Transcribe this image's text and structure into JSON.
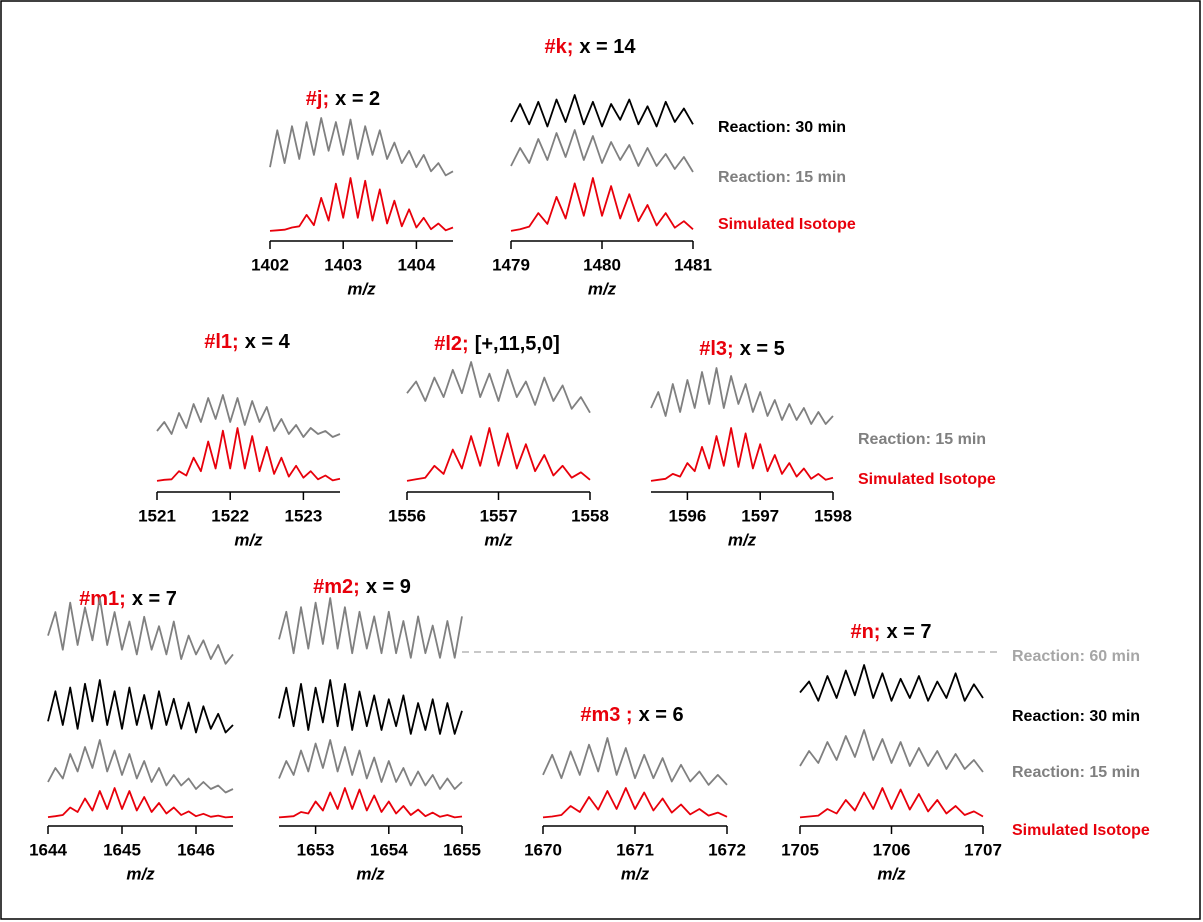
{
  "chart_data": [
    {
      "type": "line",
      "id": "#j;",
      "title": "x = 2",
      "xlabel": "m/z",
      "xlim": [
        1402,
        1404.5
      ],
      "xticks": [
        1402,
        1403,
        1404
      ],
      "x": [
        1402,
        1402.1,
        1402.2,
        1402.3,
        1402.4,
        1402.5,
        1402.6,
        1402.7,
        1402.8,
        1402.9,
        1403,
        1403.1,
        1403.2,
        1403.3,
        1403.4,
        1403.5,
        1403.6,
        1403.7,
        1403.8,
        1403.9,
        1404,
        1404.1,
        1404.2,
        1404.3,
        1404.4,
        1404.5
      ],
      "series": [
        {
          "color": "#808080",
          "values": [
            40,
            85,
            45,
            90,
            50,
            95,
            55,
            100,
            60,
            95,
            55,
            98,
            50,
            90,
            55,
            85,
            50,
            70,
            45,
            60,
            40,
            55,
            35,
            45,
            30,
            35
          ]
        },
        {
          "color": "#e8000b",
          "values": [
            2,
            3,
            4,
            8,
            10,
            30,
            12,
            60,
            20,
            85,
            25,
            95,
            25,
            90,
            20,
            75,
            15,
            55,
            10,
            40,
            8,
            25,
            5,
            15,
            3,
            8
          ]
        }
      ]
    },
    {
      "type": "line",
      "id": "#k;",
      "title": "x = 14",
      "xlabel": "m/z",
      "xlim": [
        1479,
        1481
      ],
      "xticks": [
        1479,
        1480,
        1481
      ],
      "x": [
        1479,
        1479.1,
        1479.2,
        1479.3,
        1479.4,
        1479.5,
        1479.6,
        1479.7,
        1479.8,
        1479.9,
        1480,
        1480.1,
        1480.2,
        1480.3,
        1480.4,
        1480.5,
        1480.6,
        1480.7,
        1480.8,
        1480.9,
        1481
      ],
      "series": [
        {
          "name": "Reaction: 30 min",
          "color": "#000000",
          "values": [
            40,
            80,
            35,
            85,
            30,
            90,
            40,
            100,
            35,
            85,
            30,
            80,
            45,
            90,
            35,
            75,
            30,
            85,
            40,
            70,
            35
          ]
        },
        {
          "name": "Reaction: 15 min",
          "color": "#808080",
          "values": [
            40,
            70,
            45,
            85,
            50,
            95,
            55,
            100,
            50,
            90,
            45,
            80,
            50,
            75,
            40,
            70,
            40,
            60,
            35,
            55,
            30
          ]
        },
        {
          "name": "Simulated Isotope",
          "color": "#e8000b",
          "values": [
            2,
            5,
            10,
            35,
            15,
            65,
            25,
            90,
            30,
            100,
            30,
            85,
            25,
            70,
            20,
            50,
            12,
            35,
            8,
            20,
            5
          ]
        }
      ]
    },
    {
      "type": "line",
      "id": "#l1;",
      "title": "x = 4",
      "xlabel": "m/z",
      "xlim": [
        1521,
        1523.5
      ],
      "xticks": [
        1521,
        1522,
        1523
      ],
      "x": [
        1521,
        1521.1,
        1521.2,
        1521.3,
        1521.4,
        1521.5,
        1521.6,
        1521.7,
        1521.8,
        1521.9,
        1522,
        1522.1,
        1522.2,
        1522.3,
        1522.4,
        1522.5,
        1522.6,
        1522.7,
        1522.8,
        1522.9,
        1523,
        1523.1,
        1523.2,
        1523.3,
        1523.4,
        1523.5
      ],
      "series": [
        {
          "color": "#808080",
          "values": [
            40,
            55,
            35,
            70,
            45,
            85,
            55,
            95,
            60,
            100,
            55,
            95,
            50,
            90,
            55,
            80,
            40,
            60,
            35,
            50,
            30,
            45,
            35,
            40,
            30,
            35
          ]
        },
        {
          "color": "#e8000b",
          "values": [
            2,
            4,
            5,
            20,
            12,
            45,
            20,
            75,
            25,
            95,
            25,
            100,
            25,
            85,
            20,
            65,
            15,
            45,
            10,
            30,
            8,
            20,
            5,
            12,
            3,
            6
          ]
        }
      ]
    },
    {
      "type": "line",
      "id": "#l2;",
      "title": "[+,11,5,0]",
      "xlabel": "m/z",
      "xlim": [
        1556,
        1558
      ],
      "xticks": [
        1556,
        1557,
        1558
      ],
      "x": [
        1556,
        1556.1,
        1556.2,
        1556.3,
        1556.4,
        1556.5,
        1556.6,
        1556.7,
        1556.8,
        1556.9,
        1557,
        1557.1,
        1557.2,
        1557.3,
        1557.4,
        1557.5,
        1557.6,
        1557.7,
        1557.8,
        1557.9,
        1558
      ],
      "series": [
        {
          "color": "#808080",
          "values": [
            60,
            75,
            50,
            80,
            55,
            90,
            60,
            100,
            55,
            85,
            50,
            90,
            55,
            75,
            45,
            80,
            50,
            70,
            40,
            55,
            35
          ]
        },
        {
          "color": "#e8000b",
          "values": [
            2,
            5,
            8,
            30,
            15,
            60,
            25,
            85,
            30,
            100,
            30,
            90,
            25,
            70,
            20,
            50,
            12,
            30,
            8,
            18,
            4
          ]
        }
      ]
    },
    {
      "type": "line",
      "id": "#l3;",
      "title": "x = 5",
      "xlabel": "m/z",
      "xlim": [
        1595.5,
        1598
      ],
      "xticks": [
        1596,
        1597,
        1598
      ],
      "x": [
        1595.5,
        1595.6,
        1595.7,
        1595.8,
        1595.9,
        1596,
        1596.1,
        1596.2,
        1596.3,
        1596.4,
        1596.5,
        1596.6,
        1596.7,
        1596.8,
        1596.9,
        1597,
        1597.1,
        1597.2,
        1597.3,
        1597.4,
        1597.5,
        1597.6,
        1597.7,
        1597.8,
        1597.9,
        1598
      ],
      "series": [
        {
          "name": "Reaction: 15 min",
          "color": "#808080",
          "values": [
            50,
            70,
            40,
            80,
            45,
            85,
            50,
            95,
            55,
            100,
            50,
            90,
            55,
            80,
            45,
            70,
            40,
            60,
            35,
            55,
            35,
            50,
            30,
            45,
            30,
            40
          ]
        },
        {
          "name": "Simulated Isotope",
          "color": "#e8000b",
          "values": [
            2,
            4,
            6,
            15,
            10,
            35,
            20,
            65,
            25,
            85,
            30,
            100,
            28,
            90,
            25,
            70,
            20,
            50,
            15,
            35,
            10,
            25,
            6,
            15,
            4,
            8
          ]
        }
      ]
    },
    {
      "type": "line",
      "id": "#m1;",
      "title": "x = 7",
      "xlabel": "m/z",
      "xlim": [
        1644,
        1646.5
      ],
      "xticks": [
        1644,
        1645,
        1646
      ],
      "x": [
        1644,
        1644.1,
        1644.2,
        1644.3,
        1644.4,
        1644.5,
        1644.6,
        1644.7,
        1644.8,
        1644.9,
        1645,
        1645.1,
        1645.2,
        1645.3,
        1645.4,
        1645.5,
        1645.6,
        1645.7,
        1645.8,
        1645.9,
        1646,
        1646.1,
        1646.2,
        1646.3,
        1646.4,
        1646.5
      ],
      "series": [
        {
          "color": "#808080",
          "values": [
            60,
            85,
            45,
            95,
            50,
            90,
            55,
            100,
            50,
            85,
            45,
            75,
            40,
            80,
            45,
            70,
            40,
            75,
            35,
            60,
            40,
            55,
            35,
            50,
            30,
            40
          ]
        },
        {
          "color": "#000000",
          "values": [
            45,
            85,
            40,
            90,
            35,
            95,
            45,
            100,
            40,
            85,
            35,
            90,
            40,
            80,
            35,
            85,
            40,
            75,
            35,
            70,
            30,
            65,
            35,
            55,
            30,
            40
          ]
        },
        {
          "color": "#808080",
          "values": [
            40,
            60,
            45,
            80,
            55,
            90,
            60,
            100,
            55,
            85,
            50,
            80,
            45,
            70,
            40,
            60,
            35,
            50,
            35,
            45,
            30,
            40,
            30,
            35,
            25,
            30
          ]
        },
        {
          "color": "#e8000b",
          "values": [
            3,
            6,
            10,
            35,
            20,
            65,
            25,
            90,
            30,
            100,
            30,
            90,
            25,
            70,
            20,
            50,
            15,
            35,
            10,
            22,
            6,
            14,
            4,
            8,
            2,
            4
          ]
        }
      ]
    },
    {
      "type": "line",
      "id": "#m2;",
      "title": "x = 9",
      "xlabel": "m/z",
      "xlim": [
        1652.5,
        1655
      ],
      "xticks": [
        1653,
        1654,
        1655
      ],
      "x": [
        1652.5,
        1652.6,
        1652.7,
        1652.8,
        1652.9,
        1653,
        1653.1,
        1653.2,
        1653.3,
        1653.4,
        1653.5,
        1653.6,
        1653.7,
        1653.8,
        1653.9,
        1654,
        1654.1,
        1654.2,
        1654.3,
        1654.4,
        1654.5,
        1654.6,
        1654.7,
        1654.8,
        1654.9,
        1655
      ],
      "series": [
        {
          "color": "#808080",
          "values": [
            55,
            85,
            40,
            90,
            45,
            95,
            50,
            100,
            45,
            90,
            40,
            85,
            45,
            80,
            40,
            85,
            40,
            75,
            35,
            80,
            40,
            70,
            35,
            75,
            35,
            80
          ]
        },
        {
          "color": "#000000",
          "values": [
            50,
            90,
            40,
            95,
            35,
            90,
            45,
            100,
            40,
            95,
            35,
            85,
            40,
            80,
            35,
            75,
            40,
            80,
            30,
            70,
            35,
            75,
            30,
            70,
            30,
            60
          ]
        },
        {
          "color": "#808080",
          "values": [
            45,
            70,
            50,
            85,
            55,
            95,
            60,
            100,
            55,
            90,
            50,
            85,
            45,
            75,
            40,
            70,
            40,
            60,
            35,
            55,
            35,
            50,
            30,
            45,
            30,
            40
          ]
        },
        {
          "color": "#e8000b",
          "values": [
            2,
            4,
            6,
            20,
            15,
            55,
            25,
            85,
            30,
            100,
            30,
            95,
            25,
            75,
            20,
            55,
            15,
            40,
            10,
            28,
            6,
            18,
            4,
            10,
            2,
            5
          ]
        }
      ]
    },
    {
      "type": "line",
      "id": "#m3 ;",
      "title": "x = 6",
      "xlabel": "m/z",
      "xlim": [
        1670,
        1672
      ],
      "xticks": [
        1670,
        1671,
        1672
      ],
      "x": [
        1670,
        1670.1,
        1670.2,
        1670.3,
        1670.4,
        1670.5,
        1670.6,
        1670.7,
        1670.8,
        1670.9,
        1671,
        1671.1,
        1671.2,
        1671.3,
        1671.4,
        1671.5,
        1671.6,
        1671.7,
        1671.8,
        1671.9,
        1672
      ],
      "series": [
        {
          "color": "#808080",
          "values": [
            45,
            75,
            40,
            80,
            45,
            90,
            50,
            100,
            45,
            85,
            40,
            75,
            40,
            70,
            35,
            60,
            35,
            50,
            30,
            45,
            30
          ]
        },
        {
          "color": "#e8000b",
          "values": [
            2,
            5,
            10,
            40,
            20,
            70,
            28,
            90,
            30,
            100,
            30,
            85,
            25,
            65,
            18,
            45,
            12,
            30,
            8,
            18,
            4
          ]
        }
      ]
    },
    {
      "type": "line",
      "id": "#n;",
      "title": "x = 7",
      "xlabel": "m/z",
      "xlim": [
        1705,
        1707
      ],
      "xticks": [
        1705,
        1706,
        1707
      ],
      "x": [
        1705,
        1705.1,
        1705.2,
        1705.3,
        1705.4,
        1705.5,
        1705.6,
        1705.7,
        1705.8,
        1705.9,
        1706,
        1706.1,
        1706.2,
        1706.3,
        1706.4,
        1706.5,
        1706.6,
        1706.7,
        1706.8,
        1706.9,
        1707
      ],
      "legend_extra": {
        "name": "Reaction: 60 min",
        "color": "#a6a6a6"
      },
      "series": [
        {
          "name": "Reaction: 30 min",
          "color": "#000000",
          "values": [
            50,
            70,
            35,
            80,
            40,
            90,
            45,
            100,
            40,
            85,
            35,
            75,
            40,
            80,
            35,
            70,
            40,
            85,
            35,
            65,
            40
          ]
        },
        {
          "name": "Reaction: 15 min",
          "color": "#808080",
          "values": [
            40,
            65,
            45,
            80,
            50,
            90,
            55,
            100,
            50,
            85,
            45,
            80,
            40,
            70,
            40,
            65,
            35,
            60,
            35,
            50,
            30
          ]
        },
        {
          "name": "Simulated Isotope",
          "color": "#e8000b",
          "values": [
            2,
            5,
            8,
            30,
            15,
            60,
            25,
            85,
            30,
            100,
            30,
            95,
            28,
            80,
            22,
            60,
            15,
            40,
            10,
            22,
            5
          ]
        }
      ]
    }
  ]
}
